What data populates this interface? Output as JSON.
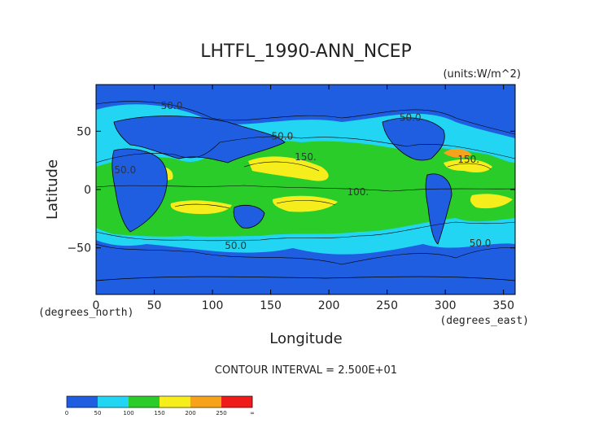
{
  "chart_data": {
    "type": "heatmap",
    "title": "LHTFL_1990-ANN_NCEP",
    "units": "(units:W/m^2)",
    "xlabel": "Longitude",
    "ylabel": "Latitude",
    "x_unit_label": "(degrees_east)",
    "y_unit_label": "(degrees_north)",
    "x_ticks": [
      "0",
      "50",
      "100",
      "150",
      "200",
      "250",
      "300",
      "350"
    ],
    "y_ticks": [
      "50",
      "0",
      "−50"
    ],
    "xlim": [
      0,
      360
    ],
    "ylim": [
      -90,
      90
    ],
    "contour_interval_text": "CONTOUR INTERVAL = 2.500E+01",
    "contour_labels": [
      {
        "text": "50.0",
        "lon": 65,
        "lat": 69
      },
      {
        "text": "50.0",
        "lon": 160,
        "lat": 43
      },
      {
        "text": "50.0",
        "lon": 270,
        "lat": 59
      },
      {
        "text": "50.0",
        "lon": 25,
        "lat": 14
      },
      {
        "text": "150.",
        "lon": 180,
        "lat": 25
      },
      {
        "text": "150.",
        "lon": 320,
        "lat": 23
      },
      {
        "text": "100.",
        "lon": 225,
        "lat": -5
      },
      {
        "text": "50.0",
        "lon": 120,
        "lat": -51
      },
      {
        "text": "50.0",
        "lon": 330,
        "lat": -49
      }
    ],
    "colorbar": {
      "levels": [
        "0",
        "50",
        "100",
        "150",
        "200",
        "250",
        "∞"
      ],
      "colors": [
        "#1f5ee0",
        "#1f5ee0",
        "#22d5f2",
        "#22d5f2",
        "#29cc29",
        "#29cc29",
        "#f5ee1c",
        "#f5ee1c",
        "#f6a21b",
        "#f6a21b",
        "#ef1b1b",
        "#ef1b1b"
      ]
    },
    "band_colors": {
      "low": "#1f5ee0",
      "mid_low": "#22d5f2",
      "mid": "#29cc29",
      "high": "#f5ee1c",
      "higher": "#f6a21b"
    }
  }
}
